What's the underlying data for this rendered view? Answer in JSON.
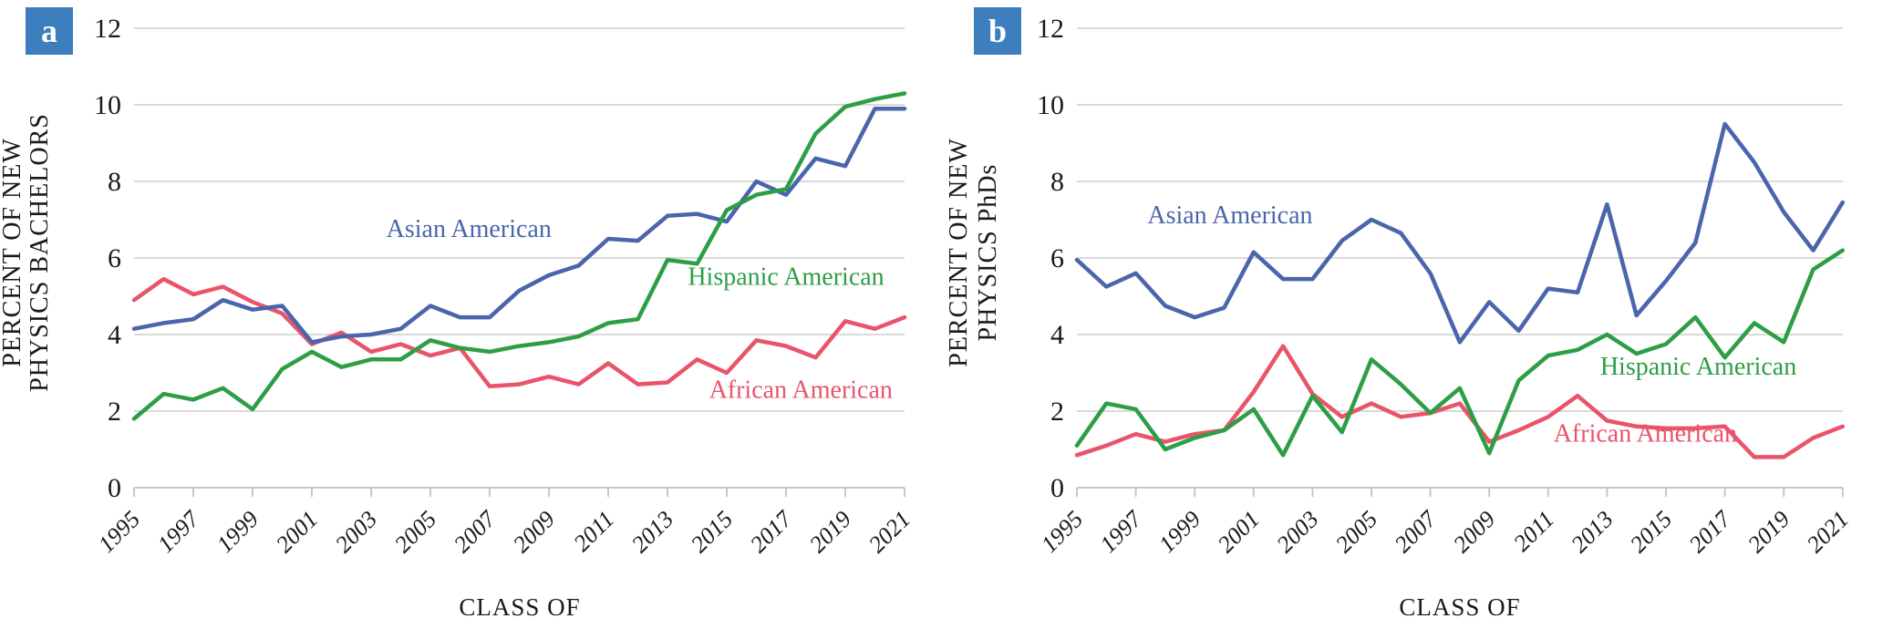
{
  "figure": {
    "background": "#ffffff",
    "text_color": "#1a1a1a",
    "grid_color": "#d9d9d9",
    "axis_color": "#c7c7c7",
    "badge_bg": "#3d7ebf",
    "badge_text_color": "#ffffff"
  },
  "chart_data": [
    {
      "type": "line",
      "panel_badge": "a",
      "ylabel_lines": [
        "PERCENT OF NEW",
        "PHYSICS BACHELORS"
      ],
      "xlabel": "CLASS OF",
      "ylim": [
        0,
        12
      ],
      "yticks": [
        0,
        2,
        4,
        6,
        8,
        10,
        12
      ],
      "grid": "horizontal",
      "legend": "inline-labels",
      "x": [
        1995,
        1996,
        1997,
        1998,
        1999,
        2000,
        2001,
        2002,
        2003,
        2004,
        2005,
        2006,
        2007,
        2008,
        2009,
        2010,
        2011,
        2012,
        2013,
        2014,
        2015,
        2016,
        2017,
        2018,
        2019,
        2020,
        2021
      ],
      "x_tick_labels": [
        "1995",
        "1997",
        "1999",
        "2001",
        "2003",
        "2005",
        "2007",
        "2009",
        "2011",
        "2013",
        "2015",
        "2017",
        "2019",
        "2021"
      ],
      "series": [
        {
          "name": "African American",
          "color": "#e9546b",
          "values": [
            4.9,
            5.45,
            5.05,
            5.25,
            4.85,
            4.55,
            3.75,
            4.05,
            3.55,
            3.75,
            3.45,
            3.65,
            2.65,
            2.7,
            2.9,
            2.7,
            3.25,
            2.7,
            2.75,
            3.35,
            3.0,
            3.85,
            3.7,
            3.4,
            4.35,
            4.15,
            4.45
          ],
          "label_anchor": {
            "year": 2017.5,
            "value": 2.35
          }
        },
        {
          "name": "Asian American",
          "color": "#4a65ab",
          "values": [
            4.15,
            4.3,
            4.4,
            4.9,
            4.65,
            4.75,
            3.8,
            3.95,
            4.0,
            4.15,
            4.75,
            4.45,
            4.45,
            5.15,
            5.55,
            5.8,
            6.5,
            6.45,
            7.1,
            7.15,
            6.95,
            8.0,
            7.65,
            8.6,
            8.4,
            9.9,
            9.9
          ],
          "label_anchor": {
            "year": 2006.3,
            "value": 6.55
          }
        },
        {
          "name": "Hispanic American",
          "color": "#2e9e45",
          "values": [
            1.8,
            2.45,
            2.3,
            2.6,
            2.05,
            3.1,
            3.55,
            3.15,
            3.35,
            3.35,
            3.85,
            3.65,
            3.55,
            3.7,
            3.8,
            3.95,
            4.3,
            4.4,
            5.95,
            5.85,
            7.25,
            7.65,
            7.8,
            9.25,
            9.95,
            10.15,
            10.3
          ],
          "label_anchor": {
            "year": 2017.0,
            "value": 5.3
          }
        }
      ]
    },
    {
      "type": "line",
      "panel_badge": "b",
      "ylabel_lines": [
        "PERCENT OF NEW",
        "PHYSICS PhDs"
      ],
      "xlabel": "CLASS OF",
      "ylim": [
        0,
        12
      ],
      "yticks": [
        0,
        2,
        4,
        6,
        8,
        10,
        12
      ],
      "grid": "horizontal",
      "legend": "inline-labels",
      "x": [
        1995,
        1996,
        1997,
        1998,
        1999,
        2000,
        2001,
        2002,
        2003,
        2004,
        2005,
        2006,
        2007,
        2008,
        2009,
        2010,
        2011,
        2012,
        2013,
        2014,
        2015,
        2016,
        2017,
        2018,
        2019,
        2020,
        2021
      ],
      "x_tick_labels": [
        "1995",
        "1997",
        "1999",
        "2001",
        "2003",
        "2005",
        "2007",
        "2009",
        "2011",
        "2013",
        "2015",
        "2017",
        "2019",
        "2021"
      ],
      "series": [
        {
          "name": "African American",
          "color": "#e9546b",
          "values": [
            0.85,
            1.1,
            1.4,
            1.2,
            1.4,
            1.5,
            2.5,
            3.7,
            2.45,
            1.85,
            2.2,
            1.85,
            1.95,
            2.2,
            1.2,
            1.5,
            1.85,
            2.4,
            1.75,
            1.6,
            1.55,
            1.55,
            1.6,
            0.8,
            0.8,
            1.3,
            1.6
          ],
          "label_anchor": {
            "year": 2014.3,
            "value": 1.2
          }
        },
        {
          "name": "Asian American",
          "color": "#4a65ab",
          "values": [
            5.95,
            5.25,
            5.6,
            4.75,
            4.45,
            4.7,
            6.15,
            5.45,
            5.45,
            6.45,
            7.0,
            6.65,
            5.6,
            3.8,
            4.85,
            4.1,
            5.2,
            5.1,
            7.4,
            4.5,
            5.4,
            6.4,
            9.5,
            8.5,
            7.2,
            6.2,
            7.45
          ],
          "label_anchor": {
            "year": 2000.2,
            "value": 6.9
          }
        },
        {
          "name": "Hispanic American",
          "color": "#2e9e45",
          "values": [
            1.1,
            2.2,
            2.05,
            1.0,
            1.3,
            1.5,
            2.05,
            0.85,
            2.4,
            1.45,
            3.35,
            2.7,
            1.95,
            2.6,
            0.9,
            2.8,
            3.45,
            3.6,
            4.0,
            3.5,
            3.75,
            4.45,
            3.4,
            4.3,
            3.8,
            5.7,
            6.2
          ],
          "label_anchor": {
            "year": 2016.1,
            "value": 2.95
          }
        }
      ]
    }
  ]
}
